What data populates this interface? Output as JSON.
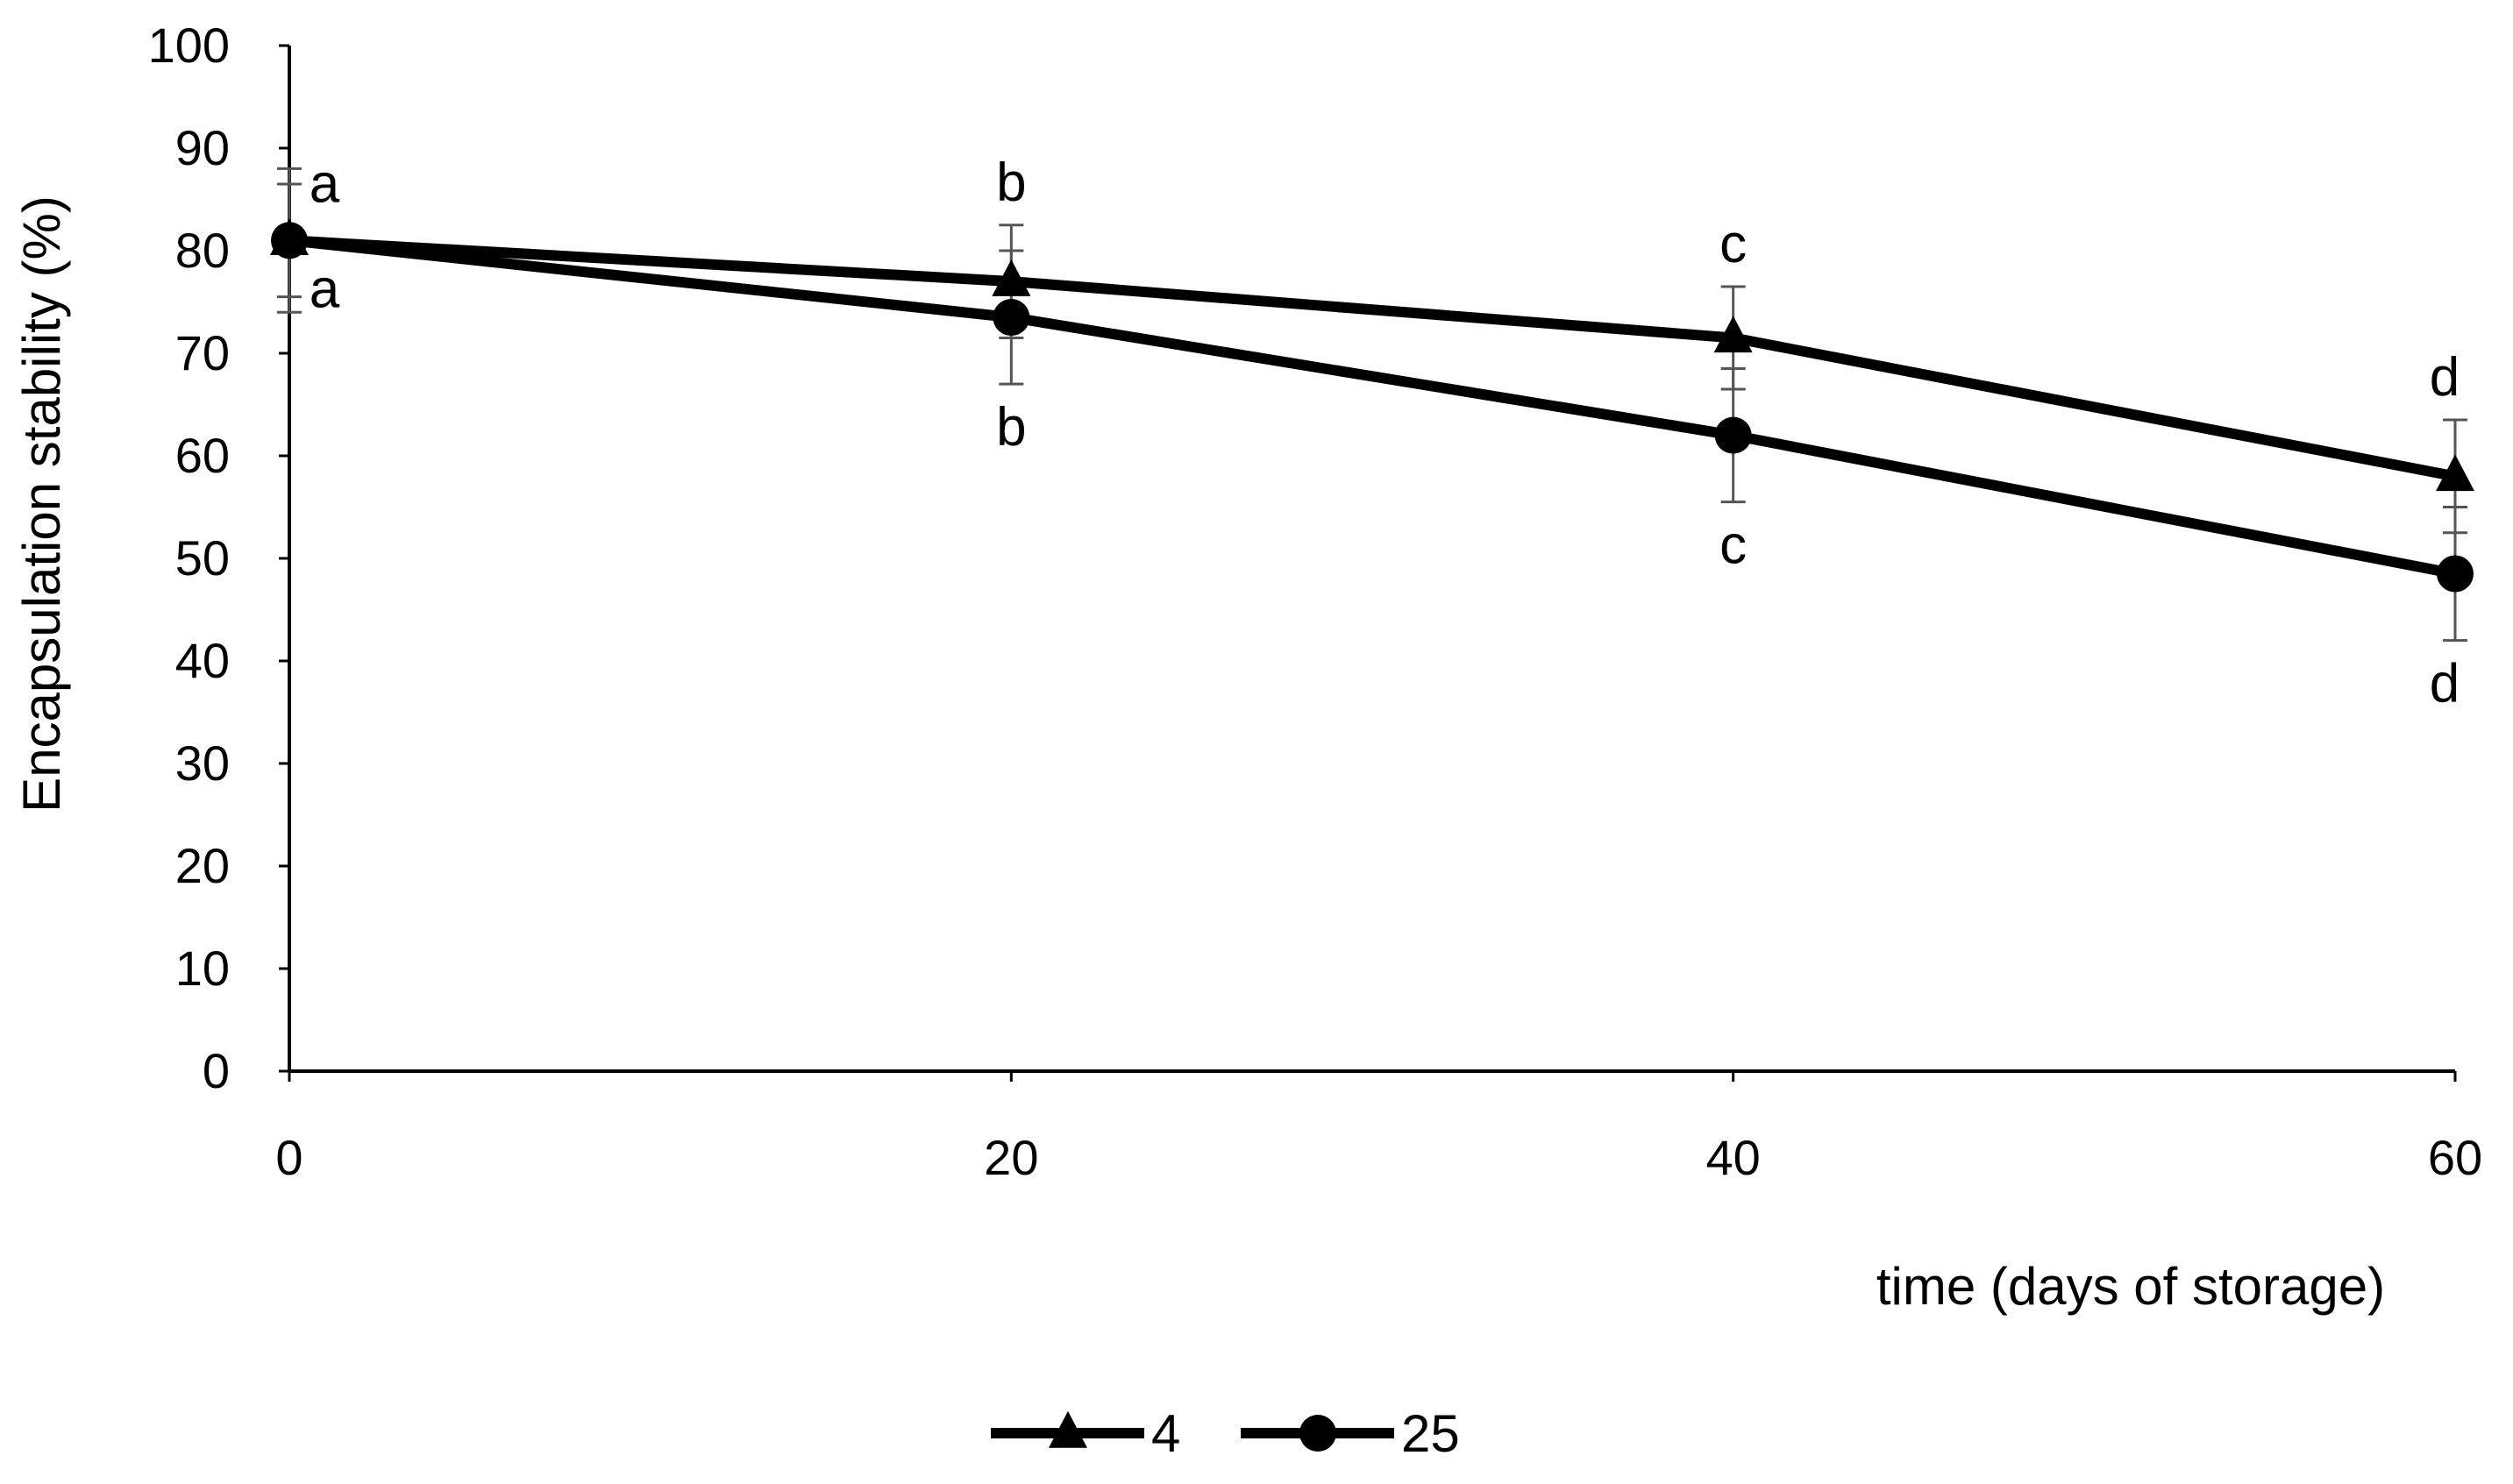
{
  "chart_data": {
    "type": "line",
    "title": "",
    "xlabel": "time (days of storage)",
    "ylabel": "Encapsulation stability (%)",
    "x": [
      0,
      20,
      40,
      60
    ],
    "x_ticks": [
      "0",
      "20",
      "40",
      "60"
    ],
    "xlim": [
      0,
      60
    ],
    "ylim": [
      0,
      100
    ],
    "y_ticks": [
      "0",
      "10",
      "20",
      "30",
      "40",
      "50",
      "60",
      "70",
      "80",
      "90",
      "100"
    ],
    "grid": false,
    "legend_position": "bottom",
    "series": [
      {
        "name": "4",
        "marker": "triangle",
        "color": "#000000",
        "values": [
          81,
          77,
          71.5,
          58
        ],
        "error": [
          7,
          5.5,
          5,
          5.5
        ],
        "letters": [
          "a",
          "b",
          "c",
          "d"
        ],
        "letter_position": "above"
      },
      {
        "name": "25",
        "marker": "circle",
        "color": "#000000",
        "values": [
          81,
          73.5,
          62,
          48.5
        ],
        "error": [
          5.5,
          6.5,
          6.5,
          6.5
        ],
        "letters": [
          "a",
          "b",
          "c",
          "d"
        ],
        "letter_position": "below"
      }
    ]
  }
}
